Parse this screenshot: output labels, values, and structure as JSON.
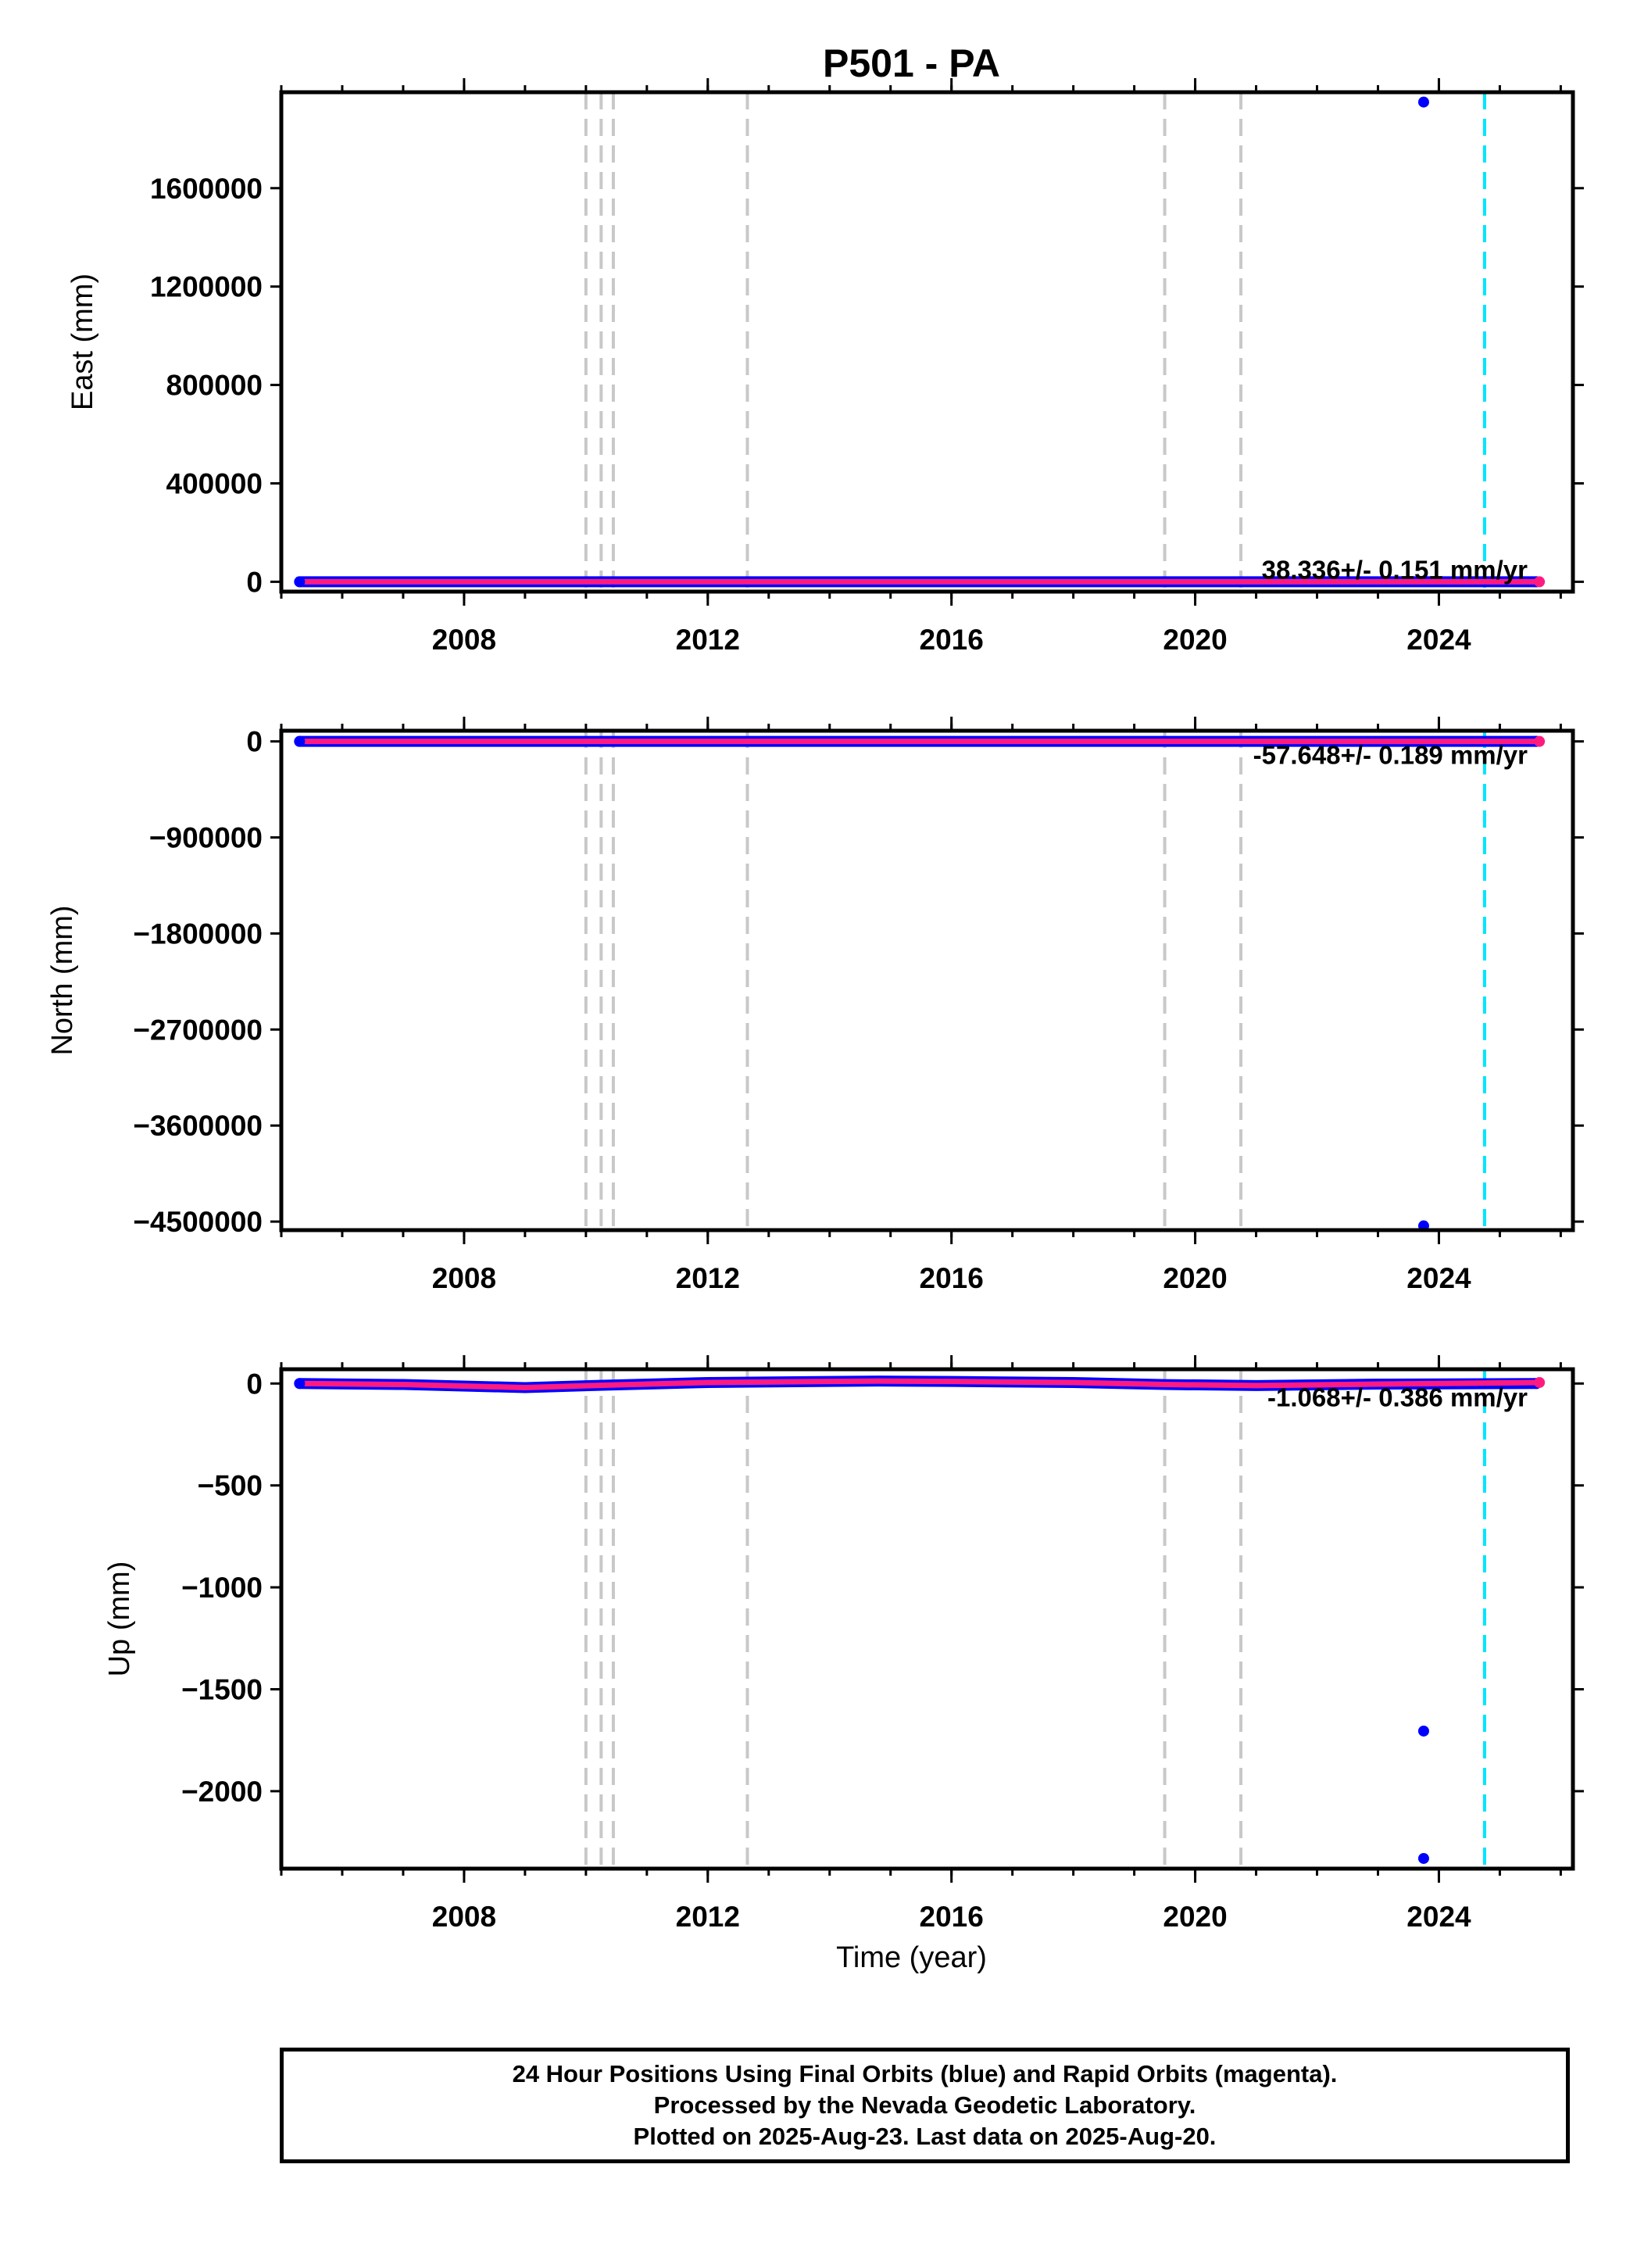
{
  "chart_data": [
    {
      "type": "scatter",
      "title": "P501 - PA",
      "xlabel": "",
      "ylabel": "East (mm)",
      "xlim": [
        2005.0,
        2026.2
      ],
      "ylim": [
        -40000,
        1990000
      ],
      "x_ticks": [
        "2008",
        "2012",
        "2016",
        "2020",
        "2024"
      ],
      "y_ticks": [
        "0",
        "400000",
        "800000",
        "1200000",
        "1600000"
      ],
      "rate_text": "38.336+/- 0.151 mm/yr",
      "series": [
        {
          "color": "#0000ff",
          "x": [
            2005.3,
            2025.6
          ],
          "y": [
            0,
            0
          ]
        },
        {
          "color": "#ff1a80",
          "x": [
            2005.3,
            2025.65
          ],
          "y": [
            0,
            0
          ]
        }
      ],
      "outliers": [
        {
          "x": 2023.75,
          "y": 1950000
        }
      ]
    },
    {
      "type": "scatter",
      "title": "",
      "xlabel": "",
      "ylabel": "North (mm)",
      "xlim": [
        2005.0,
        2026.2
      ],
      "ylim": [
        -4580000,
        100000
      ],
      "x_ticks": [
        "2008",
        "2012",
        "2016",
        "2020",
        "2024"
      ],
      "y_ticks": [
        "0",
        "−900000",
        "−1800000",
        "−2700000",
        "−3600000",
        "−4500000"
      ],
      "rate_text": "-57.648+/- 0.189 mm/yr",
      "series": [
        {
          "color": "#0000ff",
          "x": [
            2005.3,
            2025.6
          ],
          "y": [
            0,
            0
          ]
        },
        {
          "color": "#ff1a80",
          "x": [
            2005.3,
            2025.65
          ],
          "y": [
            0,
            0
          ]
        }
      ],
      "outliers": [
        {
          "x": 2023.75,
          "y": -4540000
        }
      ]
    },
    {
      "type": "scatter",
      "title": "",
      "xlabel": "Time (year)",
      "ylabel": "Up (mm)",
      "xlim": [
        2005.0,
        2026.2
      ],
      "ylim": [
        -2380,
        70
      ],
      "x_ticks": [
        "2008",
        "2012",
        "2016",
        "2020",
        "2024"
      ],
      "y_ticks": [
        "0",
        "−500",
        "−1000",
        "−1500",
        "−2000"
      ],
      "rate_text": "-1.068+/- 0.386 mm/yr",
      "series": [
        {
          "color": "#0000ff",
          "x": [
            2005.3,
            2007.0,
            2009.0,
            2010.1,
            2012.0,
            2014.8,
            2016.0,
            2018.0,
            2019.5,
            2021.0,
            2023.0,
            2025.6
          ],
          "y": [
            0,
            -5,
            -20,
            -10,
            5,
            12,
            10,
            5,
            -5,
            -10,
            -3,
            0
          ]
        },
        {
          "color": "#ff1a80",
          "x": [
            2005.3,
            2007.0,
            2009.0,
            2010.1,
            2012.0,
            2014.8,
            2016.0,
            2018.0,
            2019.5,
            2021.0,
            2023.0,
            2025.65
          ],
          "y": [
            0,
            -5,
            -20,
            -10,
            5,
            12,
            10,
            5,
            -5,
            -10,
            -3,
            5
          ]
        }
      ],
      "outliers": [
        {
          "x": 2023.75,
          "y": -1705
        },
        {
          "x": 2023.75,
          "y": -2330
        }
      ]
    }
  ],
  "event_lines": {
    "gray_years": [
      2010.0,
      2010.25,
      2010.45,
      2012.65,
      2019.5,
      2020.75
    ],
    "gray_color": "#c8c8c8",
    "cyan_year": 2024.75,
    "cyan_color": "#00e5ff"
  },
  "caption": {
    "line1": "24 Hour Positions Using Final Orbits (blue) and Rapid Orbits (magenta).",
    "line2": "Processed by the Nevada Geodetic Laboratory.",
    "line3": "Plotted on 2025-Aug-23. Last data on 2025-Aug-20."
  }
}
